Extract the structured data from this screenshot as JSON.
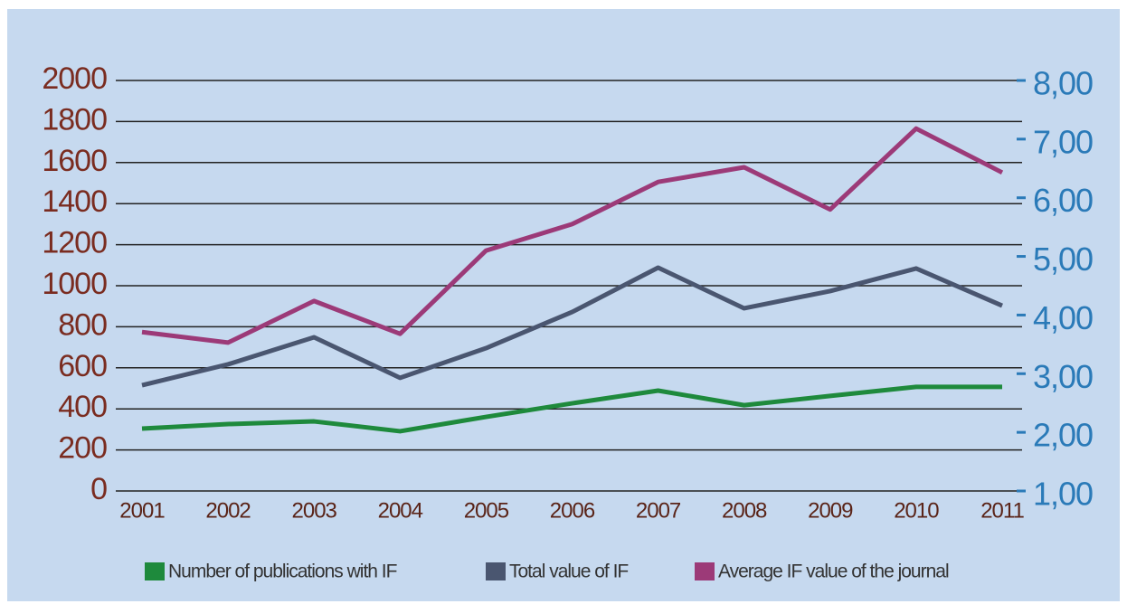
{
  "chart_data": {
    "type": "line",
    "categories": [
      "2001",
      "2002",
      "2003",
      "2004",
      "2005",
      "2006",
      "2007",
      "2008",
      "2009",
      "2010",
      "2011"
    ],
    "series": [
      {
        "name": "Number of publications with IF",
        "color": "#1e8a3c",
        "values": [
          304,
          326,
          339,
          291,
          361,
          427,
          489,
          418,
          463,
          507,
          507
        ]
      },
      {
        "name": "Total value of IF",
        "color": "#4a5670",
        "values": [
          515,
          617,
          749,
          551,
          696,
          872,
          1088,
          890,
          974,
          1084,
          903
        ]
      },
      {
        "name": "Average IF value of the journal",
        "color": "#9c3a78",
        "axis": "y2",
        "values": [
          3.71,
          3.53,
          4.24,
          3.68,
          5.1,
          5.55,
          6.27,
          6.52,
          5.8,
          7.18,
          6.43
        ]
      }
    ],
    "ylim": [
      0,
      2000
    ],
    "yticks": [
      0,
      200,
      400,
      600,
      800,
      1000,
      1200,
      1400,
      1600,
      1800,
      2000
    ],
    "y2lim": [
      1,
      8
    ],
    "y2ticks": [
      {
        "value": 1,
        "label": "1,00"
      },
      {
        "value": 2,
        "label": "2,00"
      },
      {
        "value": 3,
        "label": "3,00"
      },
      {
        "value": 4,
        "label": "4,00"
      },
      {
        "value": 5,
        "label": "5,00"
      },
      {
        "value": 6,
        "label": "6,00"
      },
      {
        "value": 7,
        "label": "7,00"
      },
      {
        "value": 8,
        "label": "8,00"
      }
    ],
    "grid": true,
    "legend": "bottom"
  }
}
